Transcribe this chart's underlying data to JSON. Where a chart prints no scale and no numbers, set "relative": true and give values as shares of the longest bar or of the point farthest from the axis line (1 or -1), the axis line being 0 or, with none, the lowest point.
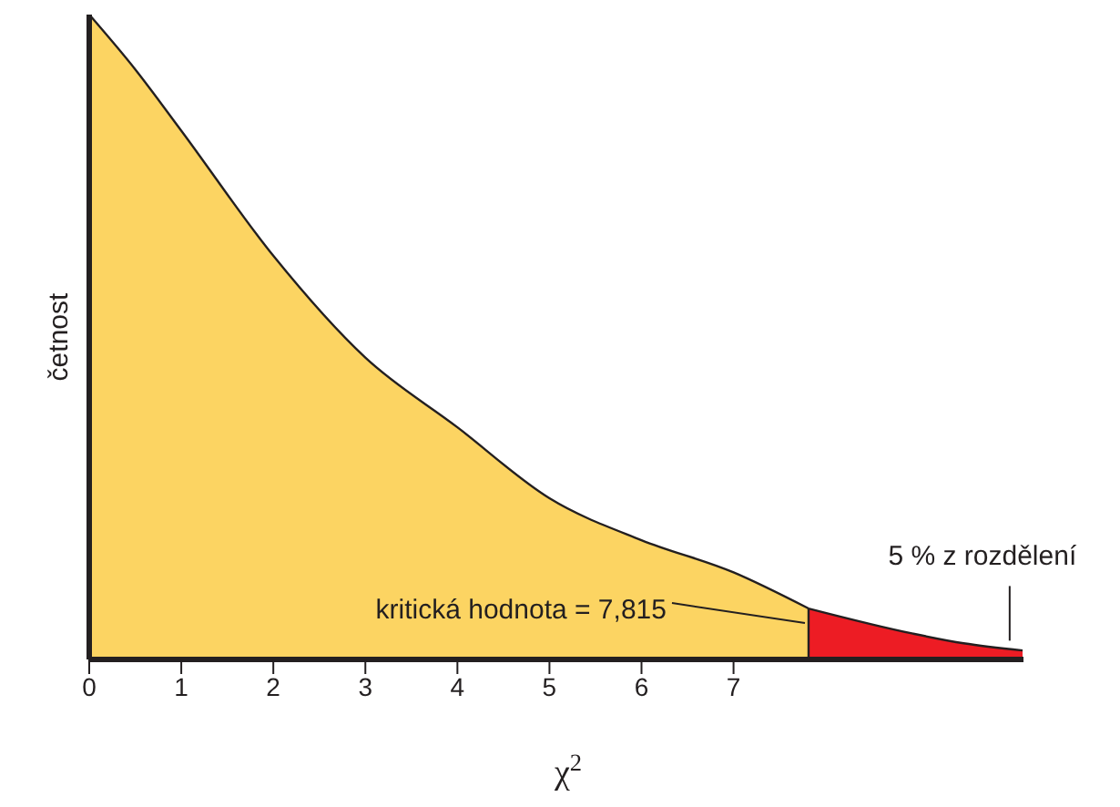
{
  "chart_data": {
    "type": "area",
    "relative": true,
    "xlabel": "χ$^{2}$",
    "ylabel": "četnost",
    "xlim": [
      0,
      10.15
    ],
    "xticks": [
      0,
      1,
      2,
      3,
      4,
      5,
      6,
      7
    ],
    "series": [
      {
        "color": "#fcd462",
        "x": [
          0,
          0.5,
          1,
          2,
          3,
          4,
          5,
          6,
          7,
          7.815
        ],
        "values": [
          1,
          0.915,
          0.82,
          0.626,
          0.468,
          0.36,
          0.25,
          0.185,
          0.135,
          0.079
        ]
      },
      {
        "color": "#ed1c24",
        "x": [
          7.815,
          8.95,
          9.5,
          10.14
        ],
        "values": [
          0.079,
          0.04,
          0.025,
          0.014
        ]
      }
    ],
    "annotations": [
      {
        "text": "kritická hodnota = 7,815",
        "x": 7.815,
        "y": 0.079
      },
      {
        "text": "5 % z rozdělení",
        "x": 10.0,
        "y": 0.015
      }
    ]
  }
}
